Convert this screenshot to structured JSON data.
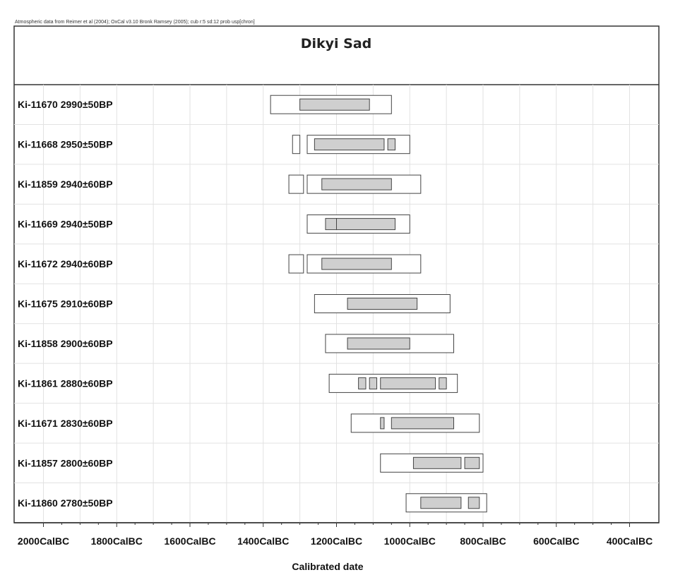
{
  "credit": "Atmospheric data from Reimer et al (2004); OxCal v3.10 Bronk Ramsey (2005); cub r:5 sd:12 prob usp[chron]",
  "chart_data": {
    "type": "calibrated-date ranges",
    "title": "Dikyi Sad",
    "xlabel": "Calibrated date",
    "xlim": [
      2080,
      320
    ],
    "x_unit": "CalBC",
    "tick_labels": [
      "2000CalBC",
      "1800CalBC",
      "1600CalBC",
      "1400CalBC",
      "1200CalBC",
      "1000CalBC",
      "800CalBC",
      "600CalBC",
      "400CalBC"
    ],
    "grid": true,
    "rows": [
      {
        "label": "Ki-11670  2990±50BP",
        "range95": [
          [
            1380,
            1050
          ]
        ],
        "range68": [
          [
            1300,
            1110
          ]
        ]
      },
      {
        "label": "Ki-11668  2950±50BP",
        "range95": [
          [
            1320,
            1300
          ],
          [
            1280,
            1000
          ]
        ],
        "range68": [
          [
            1260,
            1070
          ],
          [
            1060,
            1040
          ]
        ]
      },
      {
        "label": "Ki-11859  2940±60BP",
        "range95": [
          [
            1330,
            1290
          ],
          [
            1280,
            970
          ]
        ],
        "range68": [
          [
            1240,
            1050
          ]
        ]
      },
      {
        "label": "Ki-11669  2940±50BP",
        "range95": [
          [
            1280,
            1000
          ]
        ],
        "range68": [
          [
            1230,
            1200
          ],
          [
            1200,
            1040
          ]
        ]
      },
      {
        "label": "Ki-11672  2940±60BP",
        "range95": [
          [
            1330,
            1290
          ],
          [
            1280,
            970
          ]
        ],
        "range68": [
          [
            1240,
            1050
          ]
        ]
      },
      {
        "label": "Ki-11675  2910±60BP",
        "range95": [
          [
            1260,
            890
          ]
        ],
        "range68": [
          [
            1170,
            980
          ]
        ]
      },
      {
        "label": "Ki-11858  2900±60BP",
        "range95": [
          [
            1230,
            880
          ]
        ],
        "range68": [
          [
            1170,
            1000
          ]
        ]
      },
      {
        "label": "Ki-11861  2880±60BP",
        "range95": [
          [
            1220,
            870
          ]
        ],
        "range68": [
          [
            1140,
            1120
          ],
          [
            1110,
            1090
          ],
          [
            1080,
            930
          ],
          [
            920,
            900
          ]
        ]
      },
      {
        "label": "Ki-11671  2830±60BP",
        "range95": [
          [
            1160,
            810
          ]
        ],
        "range68": [
          [
            1080,
            1070
          ],
          [
            1050,
            880
          ]
        ]
      },
      {
        "label": "Ki-11857  2800±60BP",
        "range95": [
          [
            1080,
            800
          ]
        ],
        "range68": [
          [
            990,
            860
          ],
          [
            850,
            810
          ]
        ]
      },
      {
        "label": "Ki-11860  2780±50BP",
        "range95": [
          [
            1010,
            790
          ]
        ],
        "range68": [
          [
            970,
            860
          ],
          [
            840,
            810
          ]
        ]
      }
    ]
  }
}
